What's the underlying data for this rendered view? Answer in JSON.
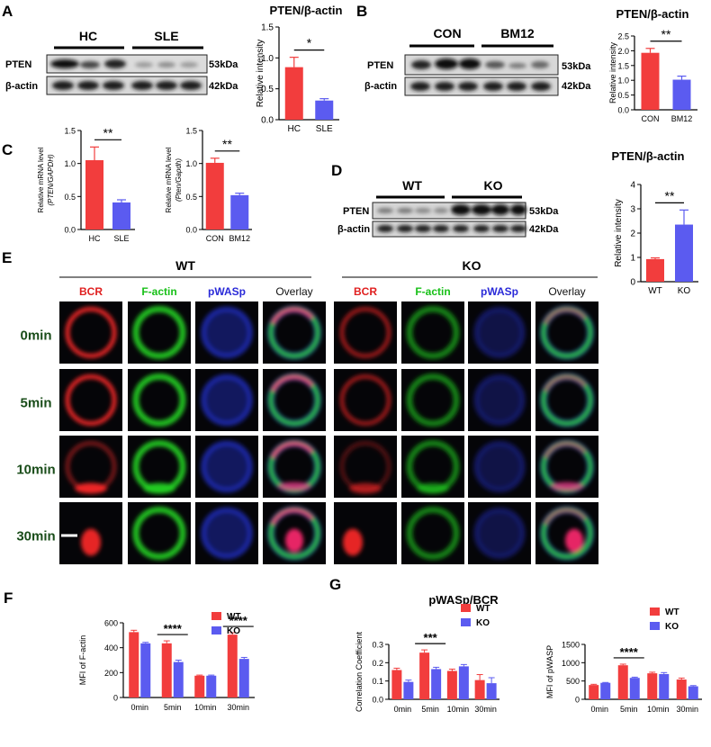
{
  "colors": {
    "red": "#f23d3d",
    "blue": "#5b5bf0",
    "text": "#111111",
    "wt_label": "#1a4d1a",
    "ko_label": "#4d4d4d",
    "bcr": "#e02020",
    "factin": "#18c018",
    "pwasp": "#2a2ad8",
    "overlay": "#111111"
  },
  "panels": {
    "A": {
      "letter": "A",
      "groups": [
        "HC",
        "SLE"
      ],
      "rows": [
        {
          "name": "PTEN",
          "kda": "53kDa"
        },
        {
          "name": "β-actin",
          "kda": "42kDa"
        }
      ]
    },
    "B": {
      "letter": "B",
      "groups": [
        "CON",
        "BM12"
      ],
      "rows": [
        {
          "name": "PTEN",
          "kda": "53kDa"
        },
        {
          "name": "β-actin",
          "kda": "42kDa"
        }
      ]
    },
    "C": {
      "letter": "C"
    },
    "D": {
      "letter": "D",
      "groups": [
        "WT",
        "KO"
      ],
      "rows": [
        {
          "name": "PTEN",
          "kda": "53kDa"
        },
        {
          "name": "β-actin",
          "kda": "42kDa"
        }
      ]
    },
    "E": {
      "letter": "E",
      "genotypes": [
        "WT",
        "KO"
      ],
      "channels": [
        "BCR",
        "F-actin",
        "pWASp",
        "Overlay"
      ],
      "timepoints": [
        "0min",
        "5min",
        "10min",
        "30min"
      ]
    },
    "F": {
      "letter": "F"
    },
    "G": {
      "letter": "G",
      "title": "pWASp/BCR"
    }
  },
  "chart_data": [
    {
      "id": "A_chart",
      "type": "bar",
      "title": "PTEN/β-actin",
      "ylabel": "Relative intensity",
      "categories": [
        "HC",
        "SLE"
      ],
      "values": [
        0.85,
        0.31
      ],
      "errors": [
        0.16,
        0.03
      ],
      "ylim": [
        0,
        1.5
      ],
      "yticks": [
        "0.0",
        "0.5",
        "1.0",
        "1.5"
      ],
      "significance": [
        {
          "label": "*",
          "from": 0,
          "to": 1
        }
      ]
    },
    {
      "id": "B_chart",
      "type": "bar",
      "title": "PTEN/β-actin",
      "ylabel": "Relative intensity",
      "categories": [
        "CON",
        "BM12"
      ],
      "values": [
        1.93,
        1.02
      ],
      "errors": [
        0.15,
        0.12
      ],
      "ylim": [
        0,
        2.5
      ],
      "yticks": [
        "0.0",
        "0.5",
        "1.0",
        "1.5",
        "2.0",
        "2.5"
      ],
      "significance": [
        {
          "label": "**",
          "from": 0,
          "to": 1
        }
      ]
    },
    {
      "id": "C1_chart",
      "type": "bar",
      "title": "",
      "ylabel": "Relative mRNA level (PTEN/GAPDH)",
      "categories": [
        "HC",
        "SLE"
      ],
      "values": [
        1.05,
        0.41
      ],
      "errors": [
        0.2,
        0.04
      ],
      "ylim": [
        0,
        1.5
      ],
      "yticks": [
        "0.0",
        "0.5",
        "1.0",
        "1.5"
      ],
      "significance": [
        {
          "label": "**",
          "from": 0,
          "to": 1
        }
      ]
    },
    {
      "id": "C2_chart",
      "type": "bar",
      "title": "",
      "ylabel": "Relative mRNA level (Pten/Gapdh)",
      "categories": [
        "CON",
        "BM12"
      ],
      "values": [
        1.01,
        0.52
      ],
      "errors": [
        0.07,
        0.03
      ],
      "ylim": [
        0,
        1.5
      ],
      "yticks": [
        "0.0",
        "0.5",
        "1.0",
        "1.5"
      ],
      "significance": [
        {
          "label": "**",
          "from": 0,
          "to": 1
        }
      ]
    },
    {
      "id": "D_chart",
      "type": "bar",
      "title": "PTEN/β-actin",
      "ylabel": "Relative intensity",
      "categories": [
        "WT",
        "KO"
      ],
      "values": [
        0.93,
        2.35
      ],
      "errors": [
        0.05,
        0.6
      ],
      "ylim": [
        0,
        4
      ],
      "yticks": [
        "0",
        "1",
        "2",
        "3",
        "4"
      ],
      "significance": [
        {
          "label": "**",
          "from": 0,
          "to": 1
        }
      ]
    },
    {
      "id": "F_chart",
      "type": "bar",
      "title": "",
      "ylabel": "MFI of F-actin",
      "categories": [
        "0min",
        "5min",
        "10min",
        "30min"
      ],
      "series": [
        {
          "name": "WT",
          "values": [
            525,
            435,
            175,
            505
          ],
          "errors": [
            15,
            20,
            5,
            15
          ]
        },
        {
          "name": "KO",
          "values": [
            435,
            285,
            175,
            310
          ],
          "errors": [
            8,
            15,
            5,
            12
          ]
        }
      ],
      "ylim": [
        0,
        600
      ],
      "yticks": [
        "0",
        "200",
        "400",
        "600"
      ],
      "significance": [
        {
          "label": "****",
          "category": 1
        },
        {
          "label": "****",
          "category": 3
        }
      ]
    },
    {
      "id": "G1_chart",
      "type": "bar",
      "title": "",
      "ylabel": "Correlation Coefficient",
      "categories": [
        "0min",
        "5min",
        "10min",
        "30min"
      ],
      "series": [
        {
          "name": "WT",
          "values": [
            0.16,
            0.255,
            0.155,
            0.105
          ],
          "errors": [
            0.01,
            0.015,
            0.01,
            0.03
          ]
        },
        {
          "name": "KO",
          "values": [
            0.095,
            0.165,
            0.18,
            0.088
          ],
          "errors": [
            0.01,
            0.01,
            0.01,
            0.03
          ]
        }
      ],
      "ylim": [
        0,
        0.3
      ],
      "yticks": [
        "0.0",
        "0.1",
        "0.2",
        "0.3"
      ],
      "significance": [
        {
          "label": "***",
          "category": 1
        }
      ]
    },
    {
      "id": "G2_chart",
      "type": "bar",
      "title": "",
      "ylabel": "MFI of pWASP",
      "categories": [
        "0min",
        "5min",
        "10min",
        "30min"
      ],
      "series": [
        {
          "name": "WT",
          "values": [
            390,
            930,
            710,
            540
          ],
          "errors": [
            20,
            30,
            30,
            40
          ]
        },
        {
          "name": "KO",
          "values": [
            450,
            585,
            690,
            355
          ],
          "errors": [
            10,
            20,
            40,
            20
          ]
        }
      ],
      "ylim": [
        0,
        1500
      ],
      "yticks": [
        "0",
        "500",
        "1000",
        "1500"
      ],
      "significance": [
        {
          "label": "****",
          "category": 1
        }
      ]
    }
  ]
}
